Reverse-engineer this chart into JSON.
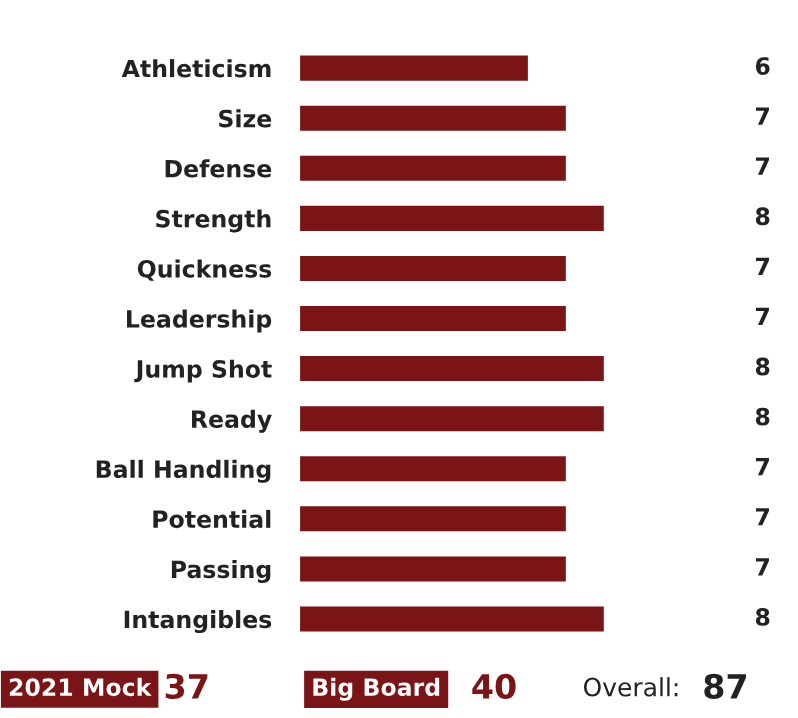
{
  "chart_data": {
    "type": "bar",
    "orientation": "horizontal",
    "color": "#7b1416",
    "categories": [
      "Athleticism",
      "Size",
      "Defense",
      "Strength",
      "Quickness",
      "Leadership",
      "Jump Shot",
      "Ready",
      "Ball Handling",
      "Potential",
      "Passing",
      "Intangibles"
    ],
    "values": [
      6,
      7,
      7,
      8,
      7,
      7,
      8,
      8,
      7,
      7,
      7,
      8
    ],
    "data_labels": true,
    "annotations": [
      "2021 Mock",
      "37",
      "Big Board",
      "40",
      "Overall:",
      "87"
    ]
  }
}
